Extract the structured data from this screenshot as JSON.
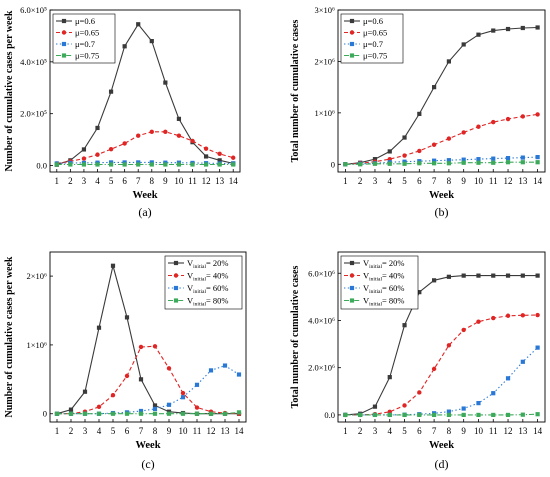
{
  "chart_data": [
    {
      "type": "line",
      "panel_label": "(a)",
      "xlabel": "Week",
      "ylabel": "Number of cumulative cases per week",
      "x": [
        1,
        2,
        3,
        4,
        5,
        6,
        7,
        8,
        9,
        10,
        11,
        12,
        13,
        14
      ],
      "xlim": [
        0.5,
        14.5
      ],
      "ylim": [
        -0.25,
        6.0
      ],
      "y_ticks": [
        0,
        2,
        4,
        6
      ],
      "y_tick_labels": [
        "0.0",
        "2.0×10⁵",
        "4.0×10⁵",
        "6.0×10⁵"
      ],
      "y_unit_note": "values in units of 10^5",
      "legend_position": "top-left",
      "series": [
        {
          "name": "μ=0.6",
          "color": "#3a3a3a",
          "marker": "square",
          "dash": "solid",
          "values": [
            0.03,
            0.2,
            0.62,
            1.45,
            2.85,
            4.6,
            5.45,
            4.8,
            3.2,
            1.8,
            0.9,
            0.35,
            0.2,
            0.08
          ]
        },
        {
          "name": "μ=0.65",
          "color": "#e02525",
          "marker": "circle",
          "dash": "dashed",
          "values": [
            0.08,
            0.16,
            0.27,
            0.42,
            0.63,
            0.85,
            1.15,
            1.3,
            1.3,
            1.15,
            0.95,
            0.65,
            0.45,
            0.3
          ]
        },
        {
          "name": "μ=0.7",
          "color": "#2a78d6",
          "marker": "square",
          "dash": "dotted",
          "values": [
            0.08,
            0.1,
            0.1,
            0.11,
            0.12,
            0.12,
            0.12,
            0.12,
            0.11,
            0.11,
            0.1,
            0.09,
            0.08,
            0.08
          ]
        },
        {
          "name": "μ=0.75",
          "color": "#3caa5a",
          "marker": "square",
          "dash": "dashdot",
          "values": [
            0.04,
            0.04,
            0.04,
            0.04,
            0.04,
            0.04,
            0.04,
            0.04,
            0.04,
            0.04,
            0.04,
            0.04,
            0.04,
            0.04
          ]
        }
      ]
    },
    {
      "type": "line",
      "panel_label": "(b)",
      "xlabel": "Week",
      "ylabel": "Total number of cumulative cases",
      "x": [
        1,
        2,
        3,
        4,
        5,
        6,
        7,
        8,
        9,
        10,
        11,
        12,
        13,
        14
      ],
      "xlim": [
        0.5,
        14.5
      ],
      "ylim": [
        -0.15,
        3.0
      ],
      "y_ticks": [
        0,
        1,
        2,
        3
      ],
      "y_tick_labels": [
        "0",
        "1×10⁶",
        "2×10⁶",
        "3×10⁶"
      ],
      "y_unit_note": "values in units of 10^6",
      "legend_position": "top-left",
      "series": [
        {
          "name": "μ=0.6",
          "color": "#3a3a3a",
          "marker": "square",
          "dash": "solid",
          "values": [
            0.0,
            0.03,
            0.1,
            0.25,
            0.52,
            0.98,
            1.5,
            2.0,
            2.33,
            2.52,
            2.6,
            2.63,
            2.65,
            2.66
          ]
        },
        {
          "name": "μ=0.65",
          "color": "#e02525",
          "marker": "circle",
          "dash": "dashed",
          "values": [
            0.0,
            0.02,
            0.05,
            0.1,
            0.17,
            0.26,
            0.38,
            0.5,
            0.62,
            0.73,
            0.82,
            0.88,
            0.93,
            0.97
          ]
        },
        {
          "name": "μ=0.7",
          "color": "#2a78d6",
          "marker": "square",
          "dash": "dotted",
          "values": [
            0.0,
            0.01,
            0.02,
            0.04,
            0.05,
            0.06,
            0.07,
            0.08,
            0.09,
            0.1,
            0.11,
            0.12,
            0.13,
            0.14
          ]
        },
        {
          "name": "μ=0.75",
          "color": "#3caa5a",
          "marker": "square",
          "dash": "dashdot",
          "values": [
            0.0,
            0.0,
            0.01,
            0.01,
            0.01,
            0.02,
            0.02,
            0.02,
            0.03,
            0.03,
            0.03,
            0.04,
            0.04,
            0.04
          ]
        }
      ]
    },
    {
      "type": "line",
      "panel_label": "(c)",
      "xlabel": "Week",
      "ylabel": "Number of cumulative cases per week",
      "x": [
        1,
        2,
        3,
        4,
        5,
        6,
        7,
        8,
        9,
        10,
        11,
        12,
        13,
        14
      ],
      "xlim": [
        0.5,
        14.5
      ],
      "ylim": [
        -0.12,
        2.35
      ],
      "y_ticks": [
        0,
        1,
        2
      ],
      "y_tick_labels": [
        "0",
        "1×10⁶",
        "2×10⁶"
      ],
      "y_unit_note": "values in units of 10^6",
      "legend_position": "top-right",
      "series": [
        {
          "name": "V_initial= 20%",
          "legend_prefix": "V",
          "legend_sub": "initial",
          "legend_suffix": "= 20%",
          "color": "#3a3a3a",
          "marker": "square",
          "dash": "solid",
          "values": [
            0.0,
            0.06,
            0.32,
            1.25,
            2.15,
            1.4,
            0.5,
            0.12,
            0.03,
            0.01,
            0.0,
            0.0,
            0.0,
            0.0
          ]
        },
        {
          "name": "V_initial= 40%",
          "legend_prefix": "V",
          "legend_sub": "initial",
          "legend_suffix": "= 40%",
          "color": "#e02525",
          "marker": "circle",
          "dash": "dashed",
          "values": [
            0.0,
            0.0,
            0.03,
            0.1,
            0.27,
            0.55,
            0.97,
            0.98,
            0.66,
            0.3,
            0.09,
            0.03,
            0.01,
            0.0
          ]
        },
        {
          "name": "V_initial= 60%",
          "legend_prefix": "V",
          "legend_sub": "initial",
          "legend_suffix": "= 60%",
          "color": "#2a78d6",
          "marker": "square",
          "dash": "dotted",
          "values": [
            0.0,
            0.0,
            0.0,
            0.0,
            0.01,
            0.02,
            0.04,
            0.07,
            0.13,
            0.24,
            0.42,
            0.63,
            0.7,
            0.57
          ]
        },
        {
          "name": "V_initial= 80%",
          "legend_prefix": "V",
          "legend_sub": "initial",
          "legend_suffix": "= 80%",
          "color": "#3caa5a",
          "marker": "square",
          "dash": "dashdot",
          "values": [
            0.0,
            0.0,
            0.0,
            0.0,
            0.0,
            0.0,
            0.0,
            0.0,
            0.0,
            0.0,
            0.0,
            0.0,
            0.0,
            0.02
          ]
        }
      ]
    },
    {
      "type": "line",
      "panel_label": "(d)",
      "xlabel": "Week",
      "ylabel": "Total number of cumulative cases",
      "x": [
        1,
        2,
        3,
        4,
        5,
        6,
        7,
        8,
        9,
        10,
        11,
        12,
        13,
        14
      ],
      "xlim": [
        0.5,
        14.5
      ],
      "ylim": [
        -0.3,
        6.9
      ],
      "y_ticks": [
        0,
        2,
        4,
        6
      ],
      "y_tick_labels": [
        "0.0",
        "2.0×10⁶",
        "4.0×10⁶",
        "6.0×10⁶"
      ],
      "y_unit_note": "values in units of 10^6",
      "legend_position": "top-left",
      "series": [
        {
          "name": "V_initial= 20%",
          "legend_prefix": "V",
          "legend_sub": "initial",
          "legend_suffix": "= 20%",
          "color": "#3a3a3a",
          "marker": "square",
          "dash": "solid",
          "values": [
            0.0,
            0.05,
            0.35,
            1.6,
            3.8,
            5.2,
            5.7,
            5.85,
            5.9,
            5.9,
            5.9,
            5.9,
            5.9,
            5.9
          ]
        },
        {
          "name": "V_initial= 40%",
          "legend_prefix": "V",
          "legend_sub": "initial",
          "legend_suffix": "= 40%",
          "color": "#e02525",
          "marker": "circle",
          "dash": "dashed",
          "values": [
            0.0,
            0.0,
            0.03,
            0.13,
            0.4,
            0.95,
            1.95,
            2.95,
            3.6,
            3.95,
            4.1,
            4.2,
            4.22,
            4.23
          ]
        },
        {
          "name": "V_initial= 60%",
          "legend_prefix": "V",
          "legend_sub": "initial",
          "legend_suffix": "= 60%",
          "color": "#2a78d6",
          "marker": "square",
          "dash": "dotted",
          "values": [
            0.0,
            0.0,
            0.0,
            0.0,
            0.01,
            0.03,
            0.07,
            0.14,
            0.27,
            0.5,
            0.92,
            1.55,
            2.25,
            2.85
          ]
        },
        {
          "name": "V_initial= 80%",
          "legend_prefix": "V",
          "legend_sub": "initial",
          "legend_suffix": "= 80%",
          "color": "#3caa5a",
          "marker": "square",
          "dash": "dashdot",
          "values": [
            0.0,
            0.0,
            0.0,
            0.0,
            0.0,
            0.0,
            0.0,
            0.0,
            0.0,
            0.0,
            0.0,
            0.0,
            0.01,
            0.03
          ]
        }
      ]
    }
  ]
}
